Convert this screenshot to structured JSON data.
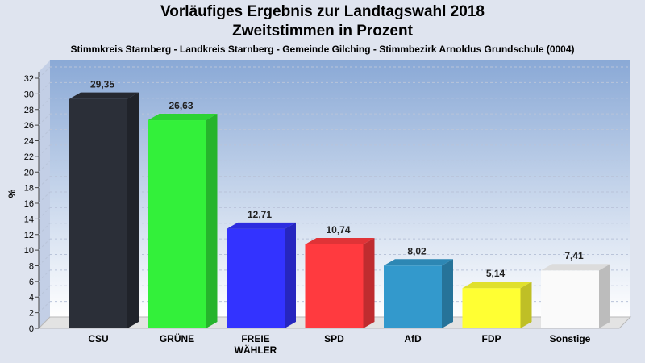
{
  "header": {
    "title": "Vorläufiges Ergebnis zur Landtagswahl 2018",
    "subtitle": "Zweitstimmen in Prozent",
    "location": "Stimmkreis Starnberg - Landkreis Starnberg - Gemeinde Gilching - Stimmbezirk Arnoldus Grundschule (0004)"
  },
  "chart_data": {
    "type": "bar",
    "title": "Vorläufiges Ergebnis zur Landtagswahl 2018",
    "subtitle": "Zweitstimmen in Prozent",
    "ylabel": "%",
    "xlabel": "",
    "ylim": [
      0,
      32
    ],
    "yticks": [
      0,
      2,
      4,
      6,
      8,
      10,
      12,
      14,
      16,
      18,
      20,
      22,
      24,
      26,
      28,
      30,
      32
    ],
    "grid": true,
    "categories": [
      [
        "CSU"
      ],
      [
        "GRÜNE"
      ],
      [
        "FREIE",
        "WÄHLER"
      ],
      [
        "SPD"
      ],
      [
        "AfD"
      ],
      [
        "FDP"
      ],
      [
        "Sonstige"
      ]
    ],
    "values": [
      29.35,
      26.63,
      12.71,
      10.74,
      8.02,
      5.14,
      7.41
    ],
    "value_labels": [
      "29,35",
      "26,63",
      "12,71",
      "10,74",
      "8,02",
      "5,14",
      "7,41"
    ],
    "colors": [
      "#2b2f38",
      "#33f03a",
      "#3333ff",
      "#ff3a3f",
      "#3399cc",
      "#ffff33",
      "#fafafa"
    ]
  }
}
